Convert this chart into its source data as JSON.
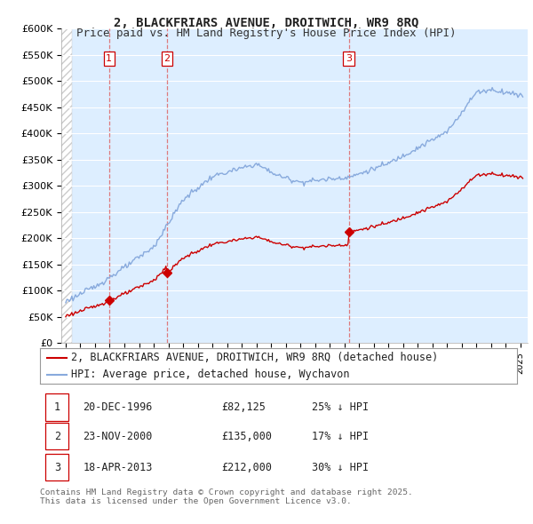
{
  "title": "2, BLACKFRIARS AVENUE, DROITWICH, WR9 8RQ",
  "subtitle": "Price paid vs. HM Land Registry's House Price Index (HPI)",
  "ylim": [
    0,
    600000
  ],
  "yticks": [
    0,
    50000,
    100000,
    150000,
    200000,
    250000,
    300000,
    350000,
    400000,
    450000,
    500000,
    550000,
    600000
  ],
  "ytick_labels": [
    "£0",
    "£50K",
    "£100K",
    "£150K",
    "£200K",
    "£250K",
    "£300K",
    "£350K",
    "£400K",
    "£450K",
    "£500K",
    "£550K",
    "£600K"
  ],
  "sale_color": "#cc0000",
  "hpi_color": "#88aadd",
  "vline_color": "#dd6666",
  "background_color": "#ffffff",
  "plot_bg_color": "#ddeeff",
  "grid_color": "#ffffff",
  "hatch_color": "#cccccc",
  "legend_label_sale": "2, BLACKFRIARS AVENUE, DROITWICH, WR9 8RQ (detached house)",
  "legend_label_hpi": "HPI: Average price, detached house, Wychavon",
  "sales": [
    {
      "date_num": 1996.96,
      "price": 82125,
      "label": "1"
    },
    {
      "date_num": 2000.9,
      "price": 135000,
      "label": "2"
    },
    {
      "date_num": 2013.3,
      "price": 212000,
      "label": "3"
    }
  ],
  "sale_vlines": [
    1996.96,
    2000.9,
    2013.3
  ],
  "transactions": [
    {
      "num": "1",
      "date": "20-DEC-1996",
      "price": "£82,125",
      "hpi": "25% ↓ HPI"
    },
    {
      "num": "2",
      "date": "23-NOV-2000",
      "price": "£135,000",
      "hpi": "17% ↓ HPI"
    },
    {
      "num": "3",
      "date": "18-APR-2013",
      "price": "£212,000",
      "hpi": "30% ↓ HPI"
    }
  ],
  "footer": "Contains HM Land Registry data © Crown copyright and database right 2025.\nThis data is licensed under the Open Government Licence v3.0.",
  "title_fontsize": 10,
  "subtitle_fontsize": 9,
  "tick_fontsize": 8,
  "legend_fontsize": 8.5,
  "table_fontsize": 8.5
}
